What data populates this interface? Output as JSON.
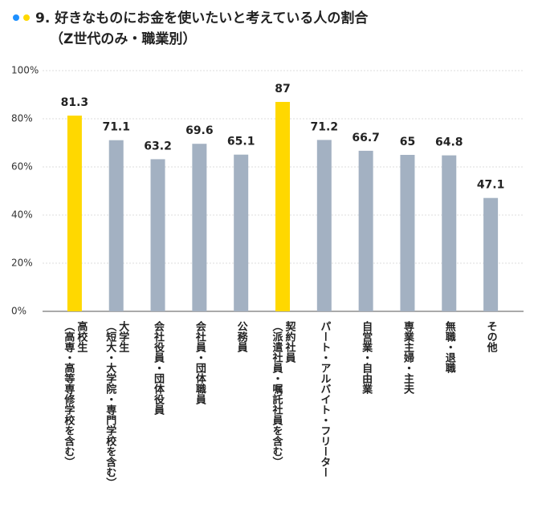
{
  "chart_data": {
    "type": "bar",
    "title": "9. 好きなものにお金を使いたいと考えている人の割合",
    "subtitle": "（Z世代のみ・職業別）",
    "categories": [
      [
        "高校生",
        "（高専・高等専修学校を含む）"
      ],
      [
        "大学生",
        "（短大・大学院・専門学校を含む）"
      ],
      [
        "会社役員・団体役員"
      ],
      [
        "会社員・団体職員"
      ],
      [
        "公務員"
      ],
      [
        "契約社員",
        "（派遣社員・嘱託社員を含む）"
      ],
      [
        "パート・アルバイト・フリーター"
      ],
      [
        "自営業・自由業"
      ],
      [
        "専業主婦・主夫"
      ],
      [
        "無職・退職"
      ],
      [
        "その他"
      ]
    ],
    "values": [
      81.3,
      71.1,
      63.2,
      69.6,
      65.1,
      87,
      71.2,
      66.7,
      65,
      64.8,
      47.1
    ],
    "colors": [
      "#ffd800",
      "#a3b1c2",
      "#a3b1c2",
      "#a3b1c2",
      "#a3b1c2",
      "#ffd800",
      "#a3b1c2",
      "#a3b1c2",
      "#a3b1c2",
      "#a3b1c2",
      "#a3b1c2"
    ],
    "ylim": [
      0,
      100
    ],
    "yticks": [
      {
        "value": 0,
        "label": "0%"
      },
      {
        "value": 20,
        "label": "20%"
      },
      {
        "value": 40,
        "label": "40%"
      },
      {
        "value": 60,
        "label": "60%"
      },
      {
        "value": 80,
        "label": "80%"
      },
      {
        "value": 100,
        "label": "100%"
      }
    ],
    "grid": true
  }
}
